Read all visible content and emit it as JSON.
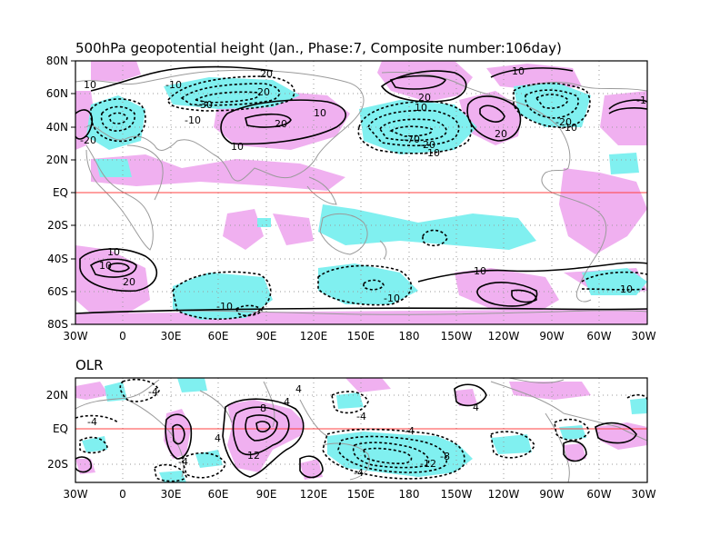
{
  "top_panel": {
    "title": "500hPa geopotential height (Jan., Phase:7, Composite number:106day)",
    "y_ticks": [
      "80N",
      "60N",
      "40N",
      "20N",
      "EQ",
      "20S",
      "40S",
      "60S",
      "80S"
    ],
    "x_ticks": [
      "30W",
      "0",
      "30E",
      "60E",
      "90E",
      "120E",
      "150E",
      "180",
      "150W",
      "120W",
      "90W",
      "60W",
      "30W"
    ],
    "contour_labels": [
      "10",
      "-20",
      "-10",
      "-30",
      "20",
      "-20",
      "10",
      "20",
      "10",
      "-10",
      "10",
      "20",
      "-70",
      "-20",
      "-10",
      "20",
      "10",
      "-20",
      "-10",
      "-10",
      "10",
      "10",
      "20",
      "-10",
      "-10",
      "10",
      "-10"
    ]
  },
  "bottom_panel": {
    "title": "OLR",
    "y_ticks": [
      "20N",
      "EQ",
      "20S"
    ],
    "x_ticks": [
      "30W",
      "0",
      "30E",
      "60E",
      "90E",
      "120E",
      "150E",
      "180",
      "150W",
      "120W",
      "90W",
      "60W",
      "30W"
    ],
    "contour_labels": [
      "-4",
      "-4",
      "4",
      "8",
      "4",
      "12",
      "4",
      "-4",
      "-4",
      "-8",
      "-12",
      "-4",
      "-4",
      "4"
    ]
  },
  "colors": {
    "positive_shading": "#f0b0f0",
    "negative_shading": "#80f0f0",
    "equator_line": "#ff4040",
    "coastline": "#9a9a9a"
  }
}
